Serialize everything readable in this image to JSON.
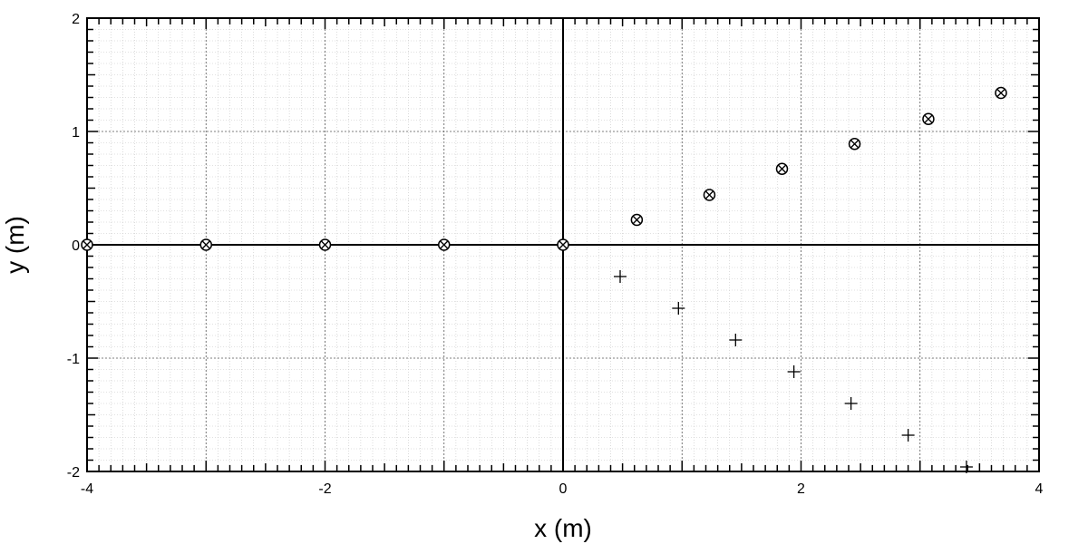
{
  "chart_data": {
    "type": "scatter",
    "title": "",
    "xlabel": "x (m)",
    "ylabel": "y (m)",
    "xlim": [
      -4,
      4
    ],
    "ylim": [
      -2,
      2
    ],
    "x_ticks": [
      {
        "value": -4,
        "label": "-4"
      },
      {
        "value": -2,
        "label": "-2"
      },
      {
        "value": 0,
        "label": "0"
      },
      {
        "value": 2,
        "label": "2"
      },
      {
        "value": 4,
        "label": "4"
      }
    ],
    "y_ticks": [
      {
        "value": 2,
        "label": "2"
      },
      {
        "value": 1,
        "label": "1"
      },
      {
        "value": 0,
        "label": "0"
      },
      {
        "value": -1,
        "label": "-1"
      },
      {
        "value": -2,
        "label": "-2"
      }
    ],
    "grid": true,
    "series": [
      {
        "marker": "circled-x",
        "points": [
          {
            "x": -4,
            "y": 0
          },
          {
            "x": -3,
            "y": 0
          },
          {
            "x": -2,
            "y": 0
          },
          {
            "x": -1,
            "y": 0
          },
          {
            "x": 0,
            "y": 0
          },
          {
            "x": 0.62,
            "y": 0.22
          },
          {
            "x": 1.23,
            "y": 0.44
          },
          {
            "x": 1.84,
            "y": 0.67
          },
          {
            "x": 2.45,
            "y": 0.89
          },
          {
            "x": 3.07,
            "y": 1.11
          },
          {
            "x": 3.68,
            "y": 1.34
          }
        ]
      },
      {
        "marker": "plus",
        "points": [
          {
            "x": 0.48,
            "y": -0.28
          },
          {
            "x": 0.97,
            "y": -0.56
          },
          {
            "x": 1.45,
            "y": -0.84
          },
          {
            "x": 1.94,
            "y": -1.12
          },
          {
            "x": 2.42,
            "y": -1.4
          },
          {
            "x": 2.9,
            "y": -1.68
          },
          {
            "x": 3.39,
            "y": -1.96
          }
        ]
      }
    ]
  }
}
